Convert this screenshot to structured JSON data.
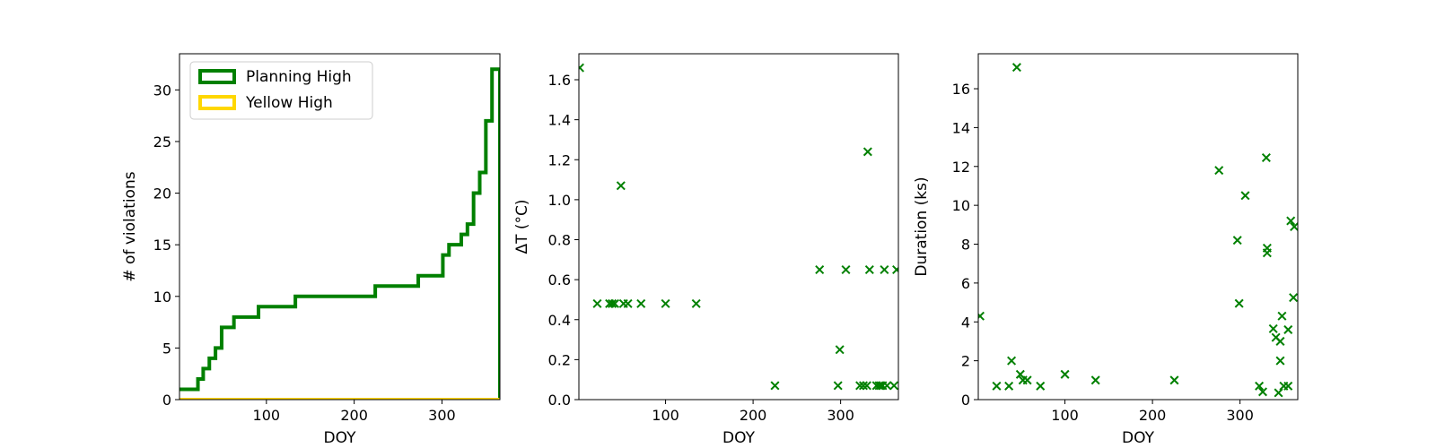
{
  "chart_data": [
    {
      "type": "step",
      "xlabel": "DOY",
      "ylabel": "# of violations",
      "xlim": [
        1,
        366
      ],
      "ylim": [
        0,
        33.5
      ],
      "xticks": [
        100,
        200,
        300
      ],
      "yticks": [
        0,
        5,
        10,
        15,
        20,
        25,
        30
      ],
      "legend_position": "upper-left",
      "series": [
        {
          "name": "Planning High",
          "color": "#008000",
          "x": [
            1,
            22,
            28,
            35,
            42,
            49,
            56,
            63,
            70,
            77,
            84,
            91,
            98,
            105,
            112,
            119,
            126,
            133,
            140,
            147,
            154,
            161,
            168,
            175,
            182,
            189,
            196,
            203,
            210,
            217,
            224,
            231,
            238,
            245,
            252,
            259,
            266,
            273,
            280,
            287,
            294,
            301,
            308,
            315,
            322,
            329,
            336,
            343,
            350,
            357,
            366
          ],
          "y": [
            1,
            2,
            3,
            4,
            5,
            7,
            7,
            8,
            8,
            8,
            8,
            9,
            9,
            9,
            9,
            9,
            9,
            10,
            10,
            10,
            10,
            10,
            10,
            10,
            10,
            10,
            10,
            10,
            10,
            10,
            11,
            11,
            11,
            11,
            11,
            11,
            11,
            12,
            12,
            12,
            12,
            14,
            15,
            15,
            16,
            17,
            20,
            22,
            27,
            32,
            0
          ]
        },
        {
          "name": "Yellow High",
          "color": "#FFD700",
          "x": [
            1,
            366
          ],
          "y": [
            0,
            0
          ]
        }
      ]
    },
    {
      "type": "scatter",
      "xlabel": "DOY",
      "ylabel": "ΔT (°C)",
      "xlim": [
        1,
        366
      ],
      "ylim": [
        0,
        1.73
      ],
      "xticks": [
        100,
        200,
        300
      ],
      "yticks": [
        0.0,
        0.2,
        0.4,
        0.6,
        0.8,
        1.0,
        1.2,
        1.4,
        1.6
      ],
      "marker_color": "#008000",
      "x": [
        2,
        22,
        36,
        39,
        42,
        49,
        52,
        57,
        72,
        100,
        135,
        225,
        276,
        297,
        299,
        306,
        322,
        326,
        330,
        331,
        333,
        341,
        344,
        346,
        348,
        350,
        353,
        361,
        364
      ],
      "y": [
        1.66,
        0.48,
        0.48,
        0.48,
        0.48,
        1.07,
        0.48,
        0.48,
        0.48,
        0.48,
        0.48,
        0.07,
        0.65,
        0.07,
        0.25,
        0.65,
        0.07,
        0.07,
        0.07,
        1.24,
        0.65,
        0.07,
        0.07,
        0.07,
        0.07,
        0.65,
        0.07,
        0.07,
        0.65
      ]
    },
    {
      "type": "scatter",
      "xlabel": "DOY",
      "ylabel": "Duration (ks)",
      "xlim": [
        1,
        366
      ],
      "ylim": [
        0,
        17.8
      ],
      "xticks": [
        100,
        200,
        300
      ],
      "yticks": [
        0,
        2,
        4,
        6,
        8,
        10,
        12,
        14,
        16
      ],
      "marker_color": "#008000",
      "x": [
        3,
        22,
        36,
        39,
        45,
        49,
        52,
        57,
        72,
        100,
        135,
        225,
        276,
        297,
        299,
        306,
        322,
        326,
        330,
        331,
        331,
        338,
        341,
        344,
        346,
        346,
        348,
        350,
        355,
        355,
        358,
        361,
        362
      ],
      "y": [
        4.3,
        0.7,
        0.7,
        2.0,
        17.1,
        1.3,
        1.0,
        1.0,
        0.7,
        1.3,
        1.0,
        1.0,
        11.8,
        8.2,
        4.95,
        10.5,
        0.7,
        0.4,
        12.45,
        7.8,
        7.55,
        3.65,
        3.2,
        0.35,
        2.0,
        3.0,
        4.3,
        0.7,
        3.6,
        0.7,
        9.2,
        5.25,
        8.9
      ]
    }
  ]
}
